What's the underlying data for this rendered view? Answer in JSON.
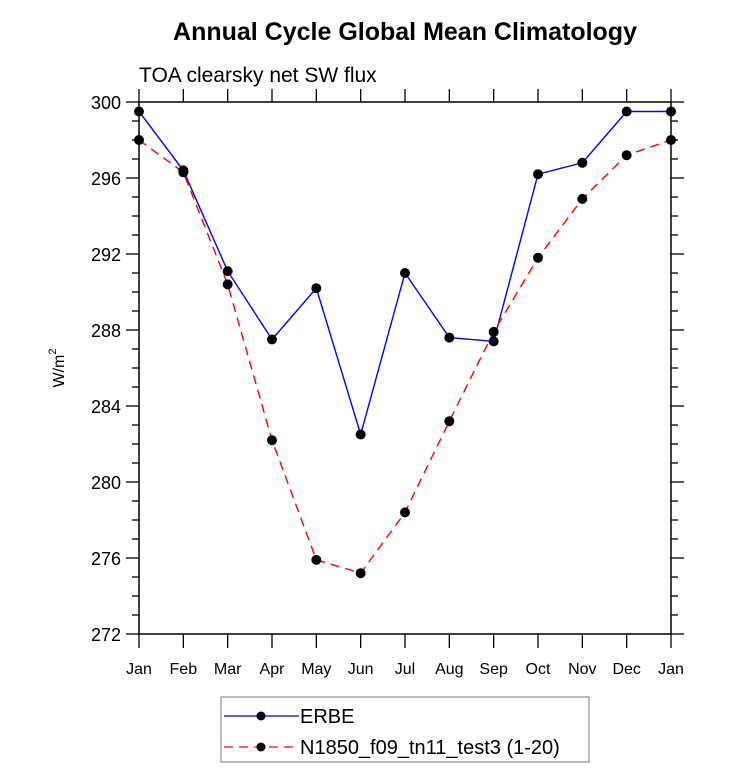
{
  "chart_data": {
    "type": "line",
    "title": "Annual Cycle Global Mean Climatology",
    "subtitle": "TOA clearsky net SW flux",
    "xlabel": "",
    "ylabel": "W/m",
    "ylabel_superscript": "2",
    "categories": [
      "Jan",
      "Feb",
      "Mar",
      "Apr",
      "May",
      "Jun",
      "Jul",
      "Aug",
      "Sep",
      "Oct",
      "Nov",
      "Dec",
      "Jan"
    ],
    "ylim": [
      272,
      300
    ],
    "yticks": [
      272,
      276,
      280,
      284,
      288,
      292,
      296,
      300
    ],
    "yminor_step": 1,
    "grid": false,
    "legend_position": "bottom-center",
    "series": [
      {
        "name": "ERBE",
        "color": "#0000ff",
        "dash": "solid",
        "marker": "filled-circle",
        "values": [
          299.5,
          296.4,
          291.1,
          287.5,
          290.2,
          282.5,
          291.0,
          287.6,
          287.4,
          296.2,
          296.8,
          299.5,
          299.5
        ]
      },
      {
        "name": "N1850_f09_tn11_test3 (1-20)",
        "color": "#ff0000",
        "dash": "dashed",
        "marker": "filled-circle",
        "values": [
          298.0,
          296.3,
          290.4,
          282.2,
          275.9,
          275.2,
          278.4,
          283.2,
          287.9,
          291.8,
          294.9,
          297.2,
          298.0
        ]
      }
    ]
  }
}
